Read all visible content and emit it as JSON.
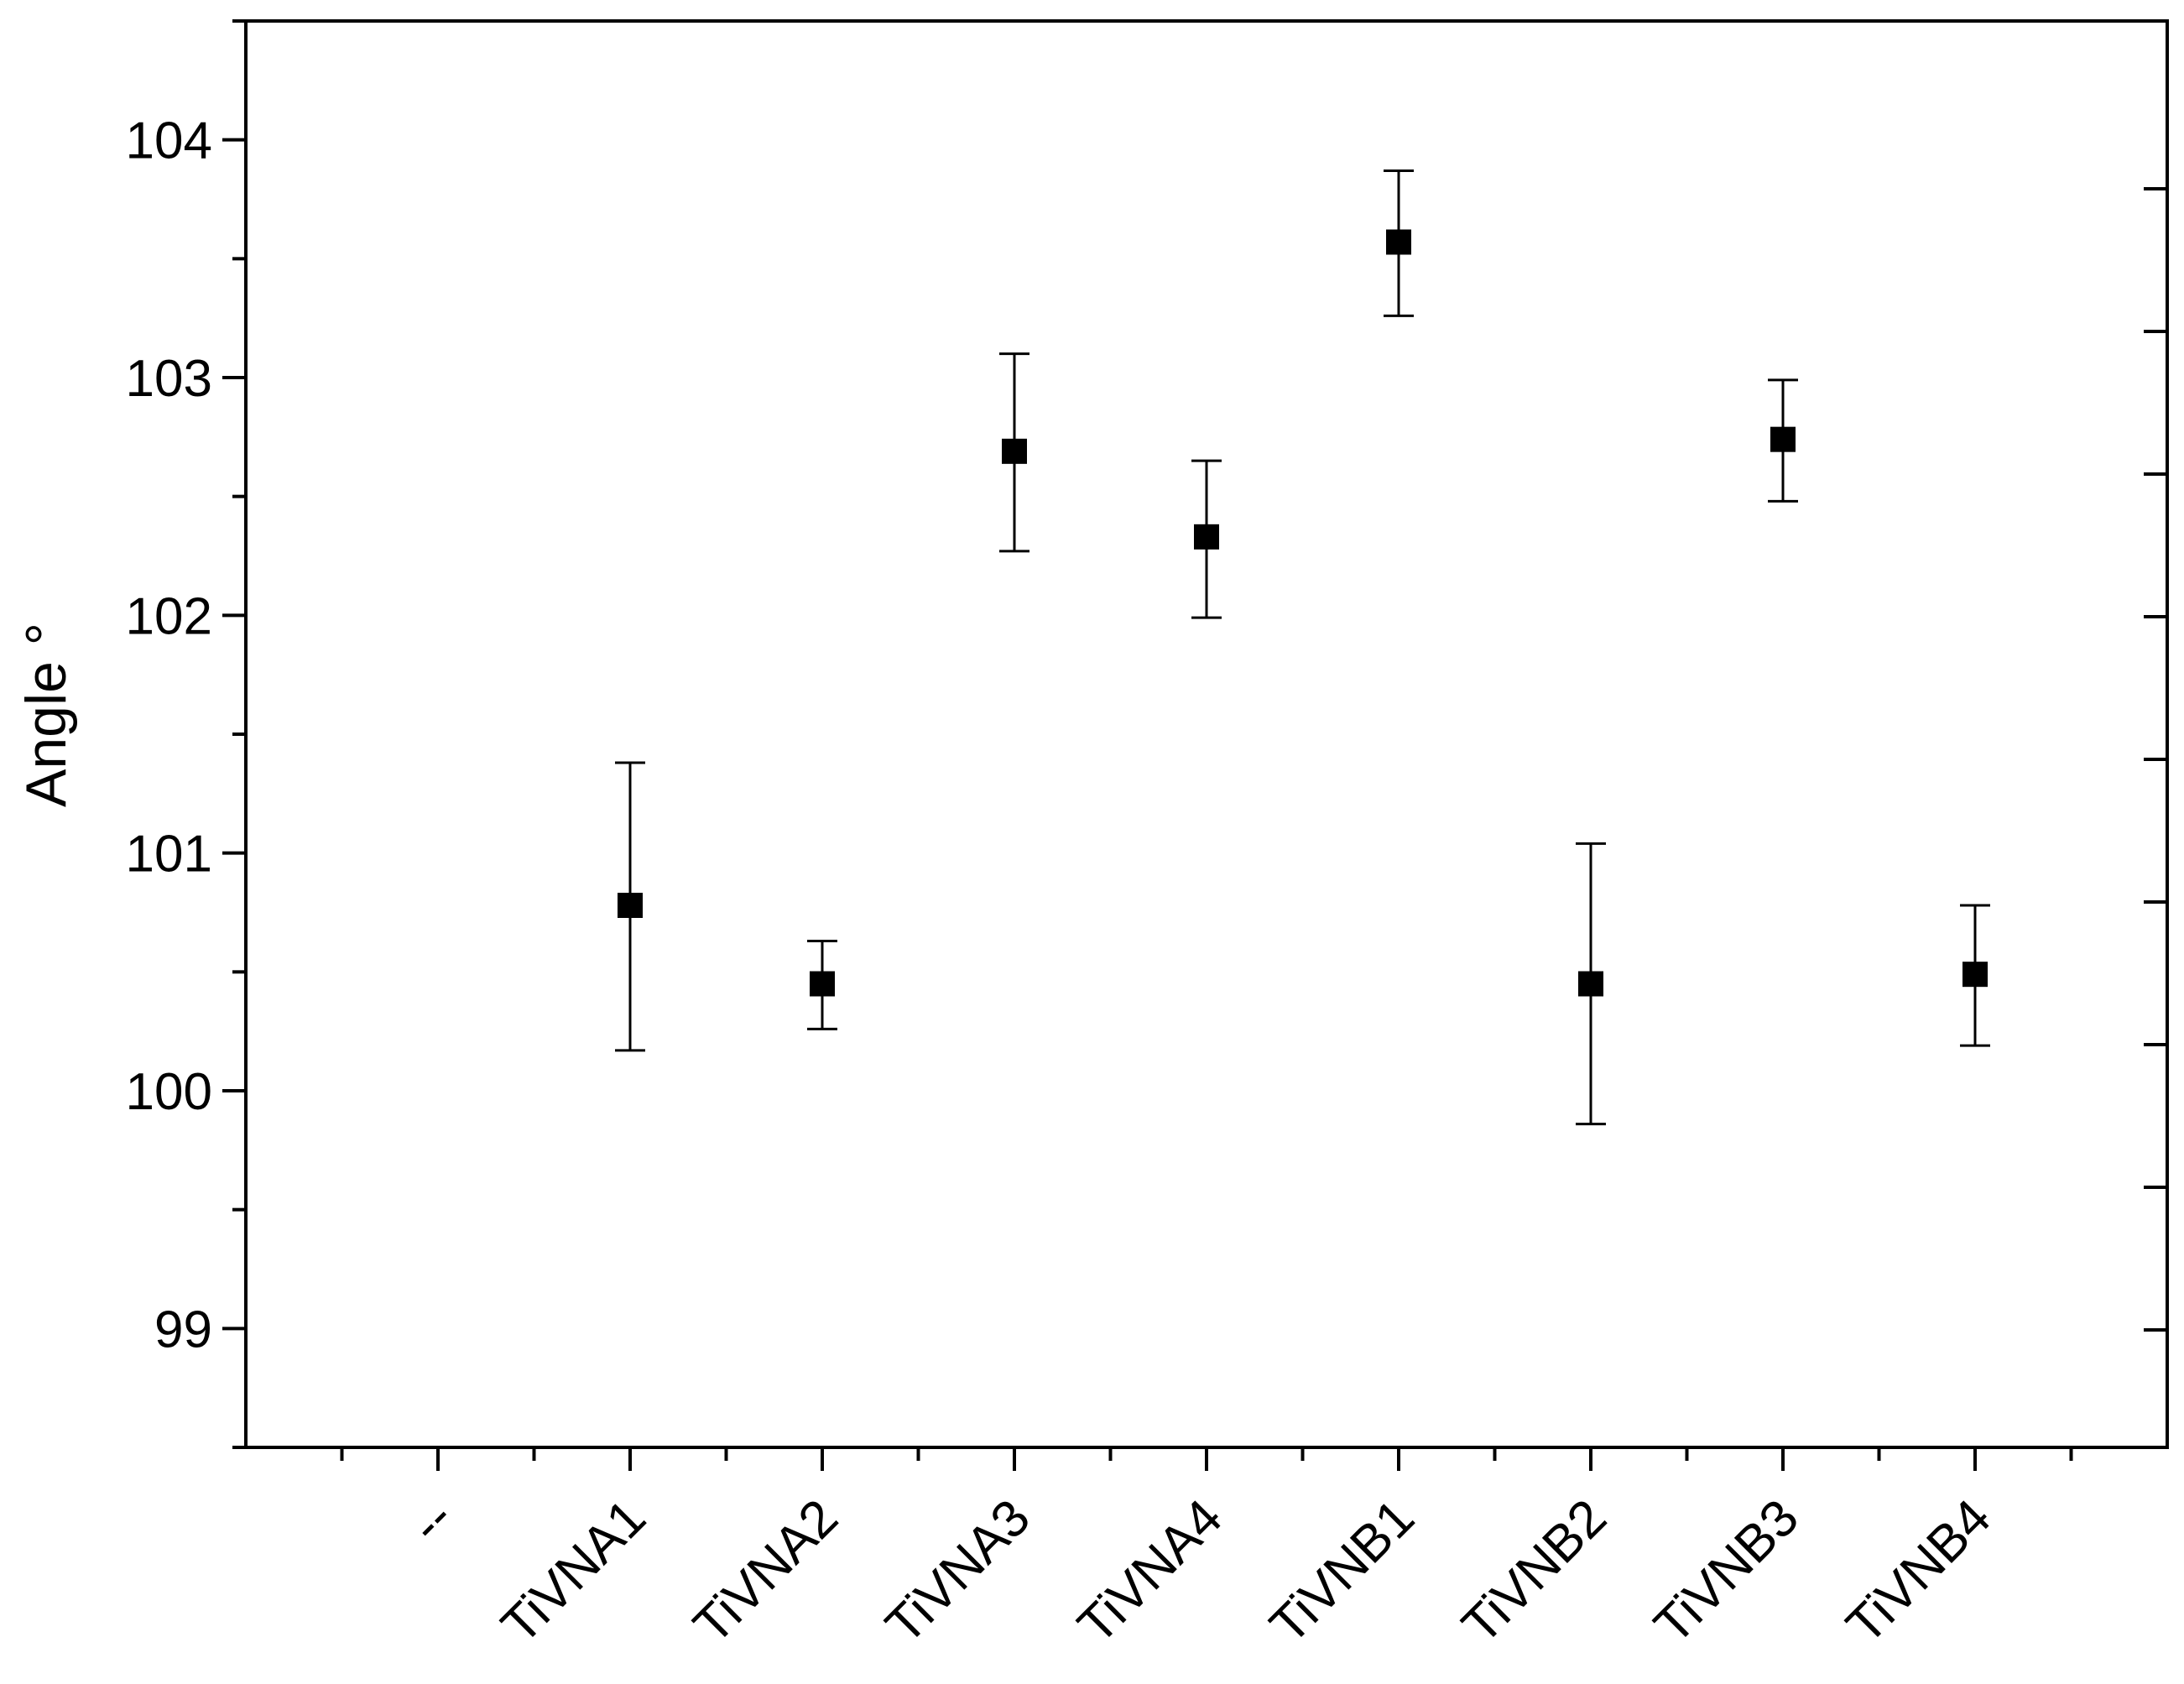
{
  "chart_data": {
    "type": "scatter",
    "title": "",
    "xlabel": "",
    "ylabel": "Angle °",
    "ylim": [
      98.5,
      104.5
    ],
    "yticks": [
      99,
      100,
      101,
      102,
      103,
      104
    ],
    "categories": [
      "--",
      "TiVNA1",
      "TiVNA2",
      "TiVNA3",
      "TiVNA4",
      "TiVNB1",
      "TiVNB2",
      "TiVNB3",
      "TiVNB4"
    ],
    "points": [
      {
        "category": "TiVNA1",
        "y": 100.78,
        "err_low": 100.17,
        "err_high": 101.38
      },
      {
        "category": "TiVNA2",
        "y": 100.45,
        "err_low": 100.26,
        "err_high": 100.63
      },
      {
        "category": "TiVNA3",
        "y": 102.69,
        "err_low": 102.27,
        "err_high": 103.1
      },
      {
        "category": "TiVNA4",
        "y": 102.33,
        "err_low": 101.99,
        "err_high": 102.65
      },
      {
        "category": "TiVNB1",
        "y": 103.57,
        "err_low": 103.26,
        "err_high": 103.87
      },
      {
        "category": "TiVNB2",
        "y": 100.45,
        "err_low": 99.86,
        "err_high": 101.04
      },
      {
        "category": "TiVNB3",
        "y": 102.74,
        "err_low": 102.48,
        "err_high": 102.99
      },
      {
        "category": "TiVNB4",
        "y": 100.49,
        "err_low": 100.19,
        "err_high": 100.78
      }
    ],
    "right_axis_ticks": true,
    "grid": false,
    "legend": "none",
    "marker": "filled-square",
    "marker_color": "#000000"
  }
}
